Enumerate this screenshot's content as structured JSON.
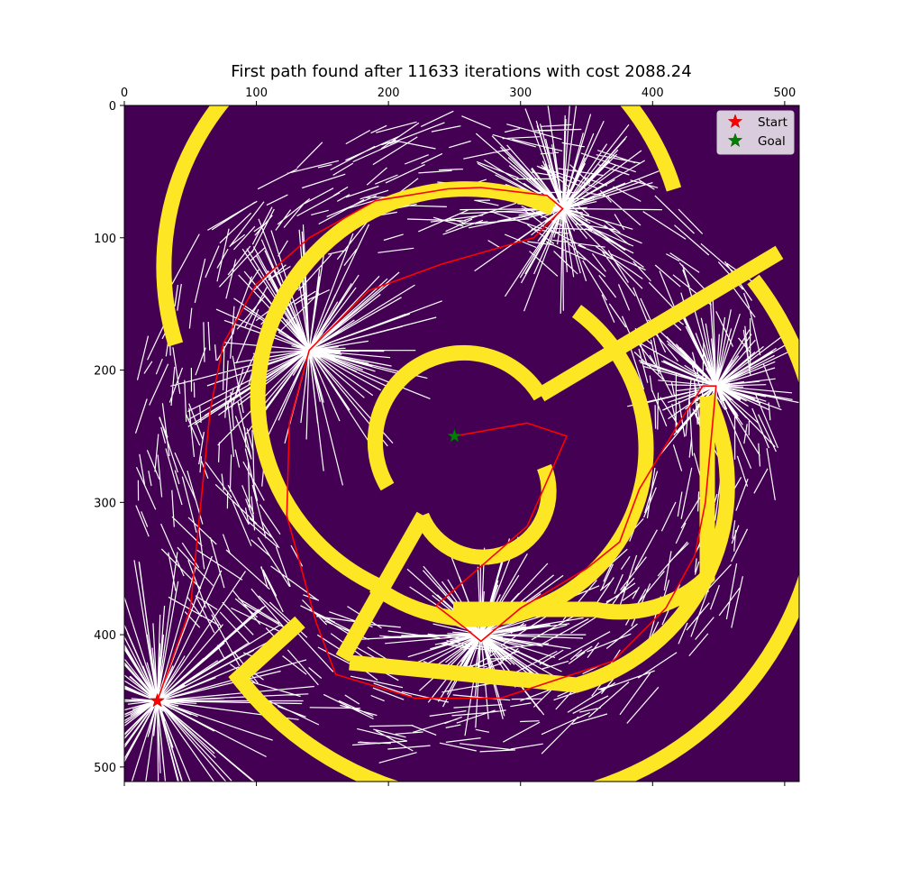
{
  "chart_data": {
    "type": "scatter",
    "title": "First path found after 11633 iterations with cost 2088.24",
    "xlim": [
      0,
      511
    ],
    "ylim": [
      511,
      0
    ],
    "x_ticks": [
      0,
      100,
      200,
      300,
      400,
      500
    ],
    "y_ticks": [
      0,
      100,
      200,
      300,
      400,
      500
    ],
    "x_axis_position": "top",
    "grid": false,
    "legend": {
      "placement": "top-right",
      "entries": [
        {
          "label": "Start",
          "color": "#ff0000",
          "marker": "star"
        },
        {
          "label": "Goal",
          "color": "#008000",
          "marker": "star"
        }
      ]
    },
    "start": [
      25,
      450
    ],
    "goal": [
      250,
      250
    ],
    "path": [
      [
        25,
        450
      ],
      [
        50,
        380
      ],
      [
        60,
        280
      ],
      [
        65,
        230
      ],
      [
        75,
        180
      ],
      [
        100,
        135
      ],
      [
        140,
        100
      ],
      [
        190,
        72
      ],
      [
        245,
        63
      ],
      [
        270,
        62
      ],
      [
        320,
        68
      ],
      [
        332,
        78
      ],
      [
        310,
        100
      ],
      [
        240,
        120
      ],
      [
        185,
        140
      ],
      [
        140,
        185
      ],
      [
        125,
        240
      ],
      [
        123,
        310
      ],
      [
        145,
        390
      ],
      [
        160,
        430
      ],
      [
        220,
        448
      ],
      [
        285,
        448
      ],
      [
        370,
        420
      ],
      [
        410,
        380
      ],
      [
        432,
        340
      ],
      [
        440,
        300
      ],
      [
        448,
        212
      ],
      [
        438,
        212
      ],
      [
        420,
        240
      ],
      [
        390,
        290
      ],
      [
        375,
        330
      ],
      [
        350,
        350
      ],
      [
        300,
        380
      ],
      [
        270,
        405
      ],
      [
        258,
        395
      ],
      [
        236,
        378
      ],
      [
        305,
        318
      ],
      [
        335,
        250
      ],
      [
        305,
        240
      ],
      [
        250,
        250
      ]
    ],
    "colors": {
      "background": "#440154",
      "walls": "#fde725",
      "tree": "#ffffff",
      "path": "#ff0000"
    }
  }
}
